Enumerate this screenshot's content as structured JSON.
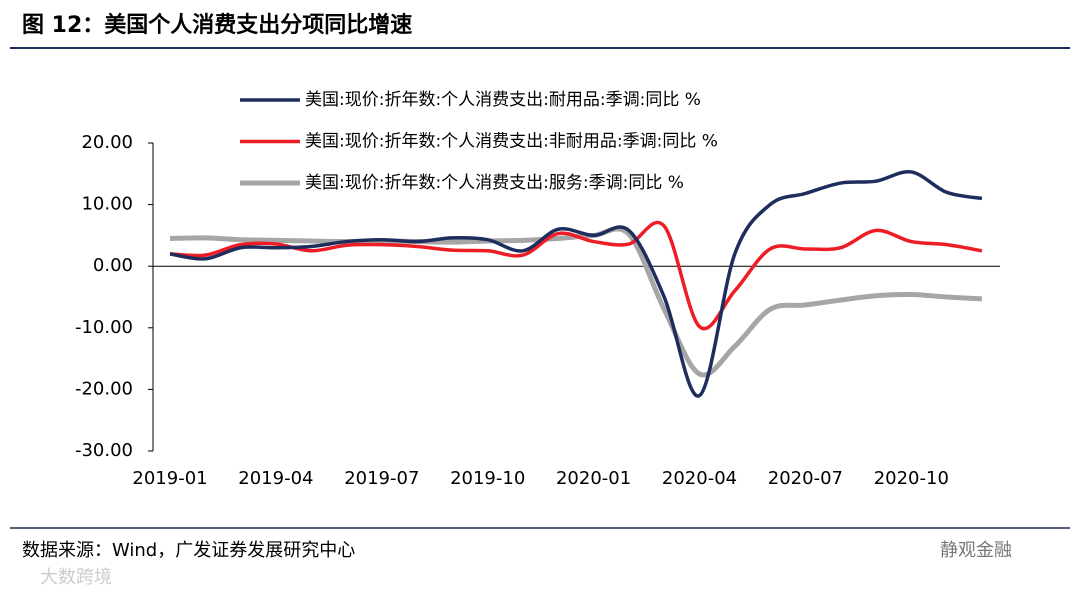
{
  "chart_data": {
    "type": "line",
    "title": "图 12：美国个人消费支出分项同比增速",
    "categories": [
      "2019-01",
      null,
      null,
      "2019-04",
      null,
      null,
      "2019-07",
      null,
      null,
      "2019-10",
      null,
      null,
      "2020-01",
      null,
      null,
      "2020-04",
      null,
      null,
      "2020-07",
      null,
      null,
      "2020-10",
      null,
      null
    ],
    "series": [
      {
        "name": "美国:现价:折年数:个人消费支出:耐用品:季调:同比 %",
        "color": "#1f2d5c",
        "values": [
          2.0,
          1.2,
          3.0,
          3.0,
          3.2,
          4.0,
          4.3,
          4.0,
          4.6,
          4.3,
          2.5,
          6.0,
          5.0,
          5.8,
          -5.0,
          -21.0,
          2.0,
          10.0,
          11.8,
          13.5,
          13.8,
          15.3,
          12.0,
          11.0
        ]
      },
      {
        "name": "美国:现价:折年数:个人消费支出:非耐用品:季调:同比 %",
        "color": "#ee1c25",
        "values": [
          2.0,
          1.8,
          3.5,
          3.6,
          2.5,
          3.4,
          3.5,
          3.2,
          2.6,
          2.5,
          1.8,
          5.3,
          4.0,
          3.6,
          6.5,
          -9.8,
          -4.0,
          2.8,
          2.8,
          3.0,
          5.8,
          4.0,
          3.5,
          2.5
        ]
      },
      {
        "name": "美国:现价:折年数:个人消费支出:服务:季调:同比 %",
        "color": "#a6a6a6",
        "values": [
          4.5,
          4.6,
          4.3,
          4.2,
          4.1,
          4.0,
          4.1,
          4.0,
          3.9,
          4.1,
          4.2,
          4.5,
          5.0,
          5.2,
          -7.0,
          -17.5,
          -13.0,
          -7.0,
          -6.3,
          -5.5,
          -4.8,
          -4.6,
          -5.0,
          -5.3
        ]
      }
    ],
    "ylim": [
      -30,
      20
    ],
    "yticks": [
      {
        "value": -30,
        "label": "-30.00"
      },
      {
        "value": -20,
        "label": "-20.00"
      },
      {
        "value": -10,
        "label": "-10.00"
      },
      {
        "value": 0,
        "label": "0.00"
      },
      {
        "value": 10,
        "label": "10.00"
      },
      {
        "value": 20,
        "label": "20.00"
      }
    ],
    "grid": false,
    "source": "数据来源：Wind，广发证券发展研究中心",
    "watermarks": [
      "静观金融",
      "大数跨境"
    ]
  }
}
